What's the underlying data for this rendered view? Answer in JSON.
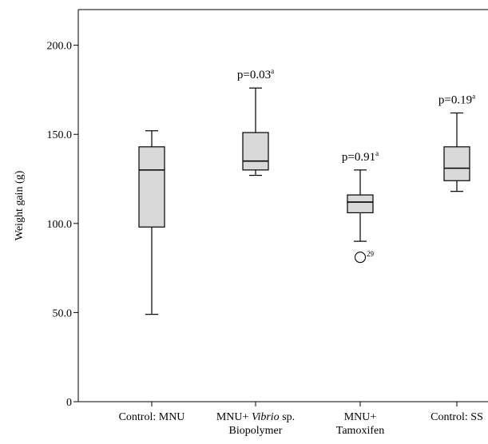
{
  "chart_data": {
    "type": "box",
    "ylabel": "Weight gain (g)",
    "ylim": [
      0,
      220
    ],
    "yticks": [
      {
        "value": 0,
        "label": "0"
      },
      {
        "value": 50,
        "label": "50.0"
      },
      {
        "value": 100,
        "label": "100.0"
      },
      {
        "value": 150,
        "label": "150.0"
      },
      {
        "value": 200,
        "label": "200.0"
      }
    ],
    "box_fill": "#d9d9d9",
    "line_color": "#000000",
    "groups": [
      {
        "label_lines": [
          [
            "Control: MNU"
          ]
        ],
        "min": 49,
        "q1": 98,
        "median": 130,
        "q3": 143,
        "max": 152,
        "p_text": "",
        "p_sup": "",
        "outliers": []
      },
      {
        "label_lines": [
          [
            "MNU+ ",
            {
              "text": "Vibrio",
              "italic": true
            },
            " sp."
          ],
          [
            "Biopolymer"
          ]
        ],
        "min": 127,
        "q1": 130,
        "median": 135,
        "q3": 151,
        "max": 176,
        "p_text": "p=0.03",
        "p_sup": "a",
        "outliers": []
      },
      {
        "label_lines": [
          [
            "MNU+"
          ],
          [
            "Tamoxifen"
          ]
        ],
        "min": 90,
        "q1": 106,
        "median": 112,
        "q3": 116,
        "max": 130,
        "p_text": "p=0.91",
        "p_sup": "a",
        "outliers": [
          {
            "value": 81,
            "label": "29"
          }
        ]
      },
      {
        "label_lines": [
          [
            "Control: SS"
          ]
        ],
        "min": 118,
        "q1": 124,
        "median": 131,
        "q3": 143,
        "max": 162,
        "p_text": "p=0.19",
        "p_sup": "a",
        "outliers": []
      }
    ]
  }
}
